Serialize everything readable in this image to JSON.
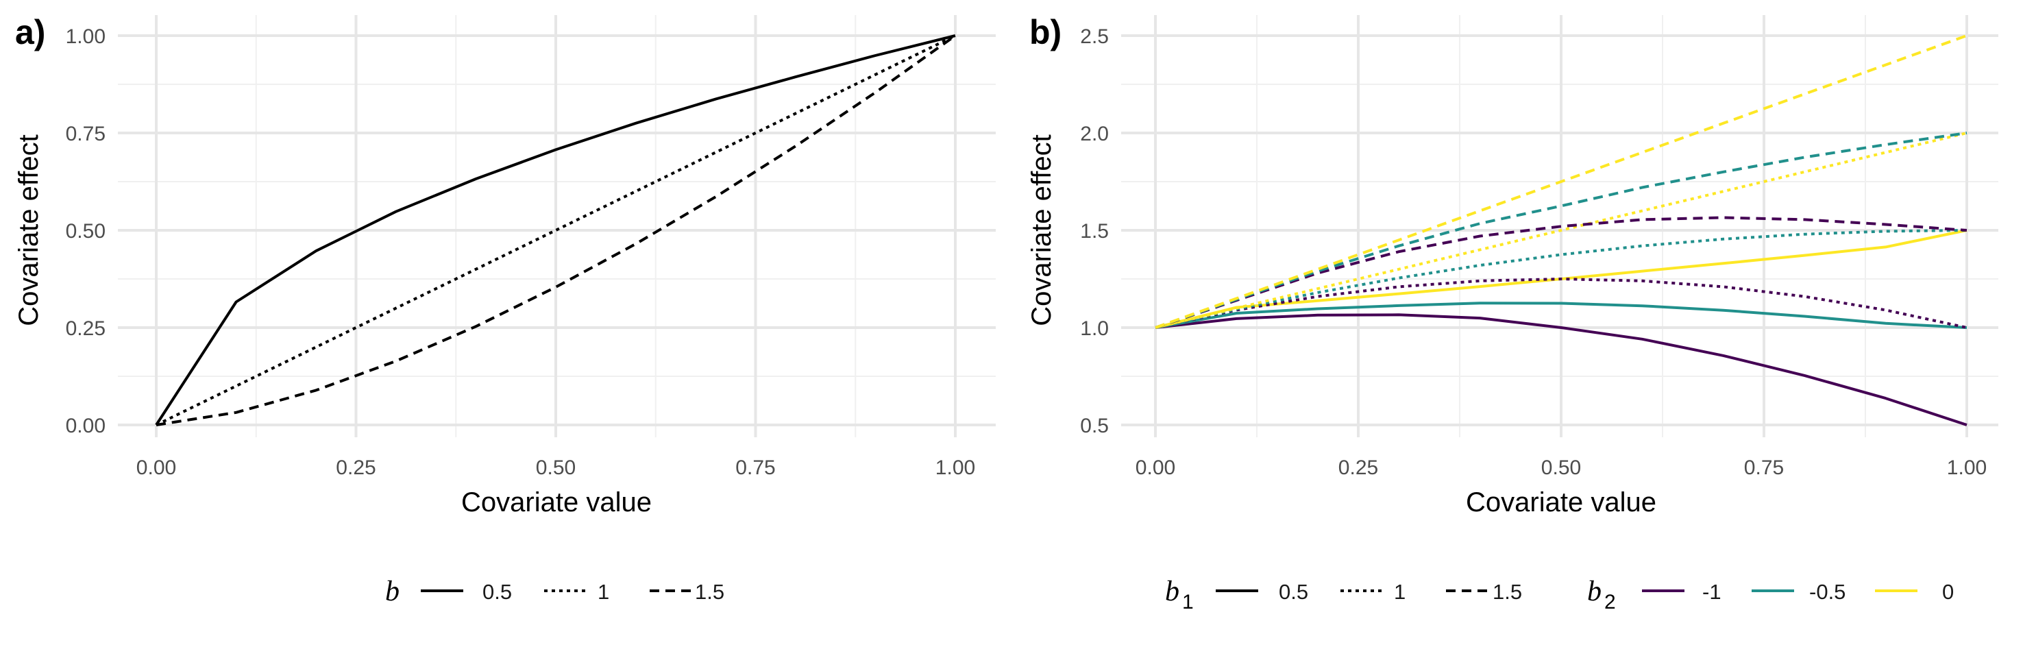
{
  "chart_data": [
    {
      "panel_tag": "a)",
      "type": "line",
      "xlabel": "Covariate value",
      "ylabel": "Covariate effect",
      "xlim": [
        0,
        1
      ],
      "ylim": [
        0,
        1
      ],
      "x_ticks": [
        "0.00",
        "0.25",
        "0.50",
        "0.75",
        "1.00"
      ],
      "y_ticks": [
        "0.00",
        "0.25",
        "0.50",
        "0.75",
        "1.00"
      ],
      "grid": true,
      "legend": {
        "title": "b",
        "placement": "bottom",
        "entries": [
          "0.5",
          "1",
          "1.5"
        ]
      },
      "series": [
        {
          "name": "0.5",
          "linetype": "solid",
          "color": "#000000",
          "x": [
            0,
            0.1,
            0.2,
            0.3,
            0.4,
            0.5,
            0.6,
            0.7,
            0.8,
            0.9,
            1.0
          ],
          "y": [
            0,
            0.316,
            0.447,
            0.548,
            0.632,
            0.707,
            0.775,
            0.837,
            0.894,
            0.949,
            1.0
          ]
        },
        {
          "name": "1",
          "linetype": "dotted",
          "color": "#000000",
          "x": [
            0,
            0.1,
            0.2,
            0.3,
            0.4,
            0.5,
            0.6,
            0.7,
            0.8,
            0.9,
            1.0
          ],
          "y": [
            0,
            0.1,
            0.2,
            0.3,
            0.4,
            0.5,
            0.6,
            0.7,
            0.8,
            0.9,
            1.0
          ]
        },
        {
          "name": "1.5",
          "linetype": "dashed",
          "color": "#000000",
          "x": [
            0,
            0.1,
            0.2,
            0.3,
            0.4,
            0.5,
            0.6,
            0.7,
            0.8,
            0.9,
            1.0
          ],
          "y": [
            0,
            0.032,
            0.089,
            0.164,
            0.253,
            0.354,
            0.465,
            0.586,
            0.716,
            0.854,
            1.0
          ]
        }
      ]
    },
    {
      "panel_tag": "b)",
      "type": "line",
      "xlabel": "Covariate value",
      "ylabel": "Covariate effect",
      "xlim": [
        0,
        1
      ],
      "ylim": [
        0.5,
        2.5
      ],
      "x_ticks": [
        "0.00",
        "0.25",
        "0.50",
        "0.75",
        "1.00"
      ],
      "y_ticks": [
        "0.5",
        "1.0",
        "1.5",
        "2.0",
        "2.5"
      ],
      "grid": true,
      "legend": {
        "placement": "bottom",
        "linetype_title": "b",
        "linetype_subscript": "1",
        "linetype_entries": [
          "0.5",
          "1",
          "1.5"
        ],
        "color_title": "b",
        "color_subscript": "2",
        "color_entries": [
          {
            "label": "-1",
            "color": "#440154"
          },
          {
            "label": "-0.5",
            "color": "#21908C"
          },
          {
            "label": "0",
            "color": "#FDE725"
          }
        ]
      },
      "series": [
        {
          "b1": "0.5",
          "b2": "-1",
          "linetype": "solid",
          "color": "#440154",
          "x": [
            0,
            0.1,
            0.2,
            0.3,
            0.4,
            0.5,
            0.6,
            0.7,
            0.8,
            0.9,
            1.0
          ],
          "y": [
            1.0,
            1.046,
            1.064,
            1.066,
            1.049,
            1.0,
            0.941,
            0.856,
            0.754,
            0.637,
            0.5
          ]
        },
        {
          "b1": "0.5",
          "b2": "-0.5",
          "linetype": "solid",
          "color": "#21908C",
          "x": [
            0,
            0.1,
            0.2,
            0.3,
            0.4,
            0.5,
            0.6,
            0.7,
            0.8,
            0.9,
            1.0
          ],
          "y": [
            1.0,
            1.074,
            1.097,
            1.113,
            1.126,
            1.125,
            1.112,
            1.089,
            1.058,
            1.022,
            1.0
          ]
        },
        {
          "b1": "0.5",
          "b2": "0",
          "linetype": "solid",
          "color": "#FDE725",
          "x": [
            0,
            0.1,
            0.2,
            0.3,
            0.4,
            0.5,
            0.6,
            0.7,
            0.8,
            0.9,
            1.0
          ],
          "y": [
            1.0,
            1.104,
            1.138,
            1.174,
            1.211,
            1.25,
            1.29,
            1.33,
            1.371,
            1.414,
            1.5
          ]
        },
        {
          "b1": "1",
          "b2": "-1",
          "linetype": "dotted",
          "color": "#440154",
          "x": [
            0,
            0.1,
            0.2,
            0.3,
            0.4,
            0.5,
            0.6,
            0.7,
            0.8,
            0.9,
            1.0
          ],
          "y": [
            1.0,
            1.09,
            1.16,
            1.21,
            1.24,
            1.25,
            1.24,
            1.21,
            1.16,
            1.09,
            1.0
          ]
        },
        {
          "b1": "1",
          "b2": "-0.5",
          "linetype": "dotted",
          "color": "#21908C",
          "x": [
            0,
            0.1,
            0.2,
            0.3,
            0.4,
            0.5,
            0.6,
            0.7,
            0.8,
            0.9,
            1.0
          ],
          "y": [
            1.0,
            1.095,
            1.18,
            1.255,
            1.32,
            1.375,
            1.42,
            1.455,
            1.48,
            1.495,
            1.5
          ]
        },
        {
          "b1": "1",
          "b2": "0",
          "linetype": "dotted",
          "color": "#FDE725",
          "x": [
            0,
            0.1,
            0.2,
            0.3,
            0.4,
            0.5,
            0.6,
            0.7,
            0.8,
            0.9,
            1.0
          ],
          "y": [
            1.0,
            1.1,
            1.2,
            1.3,
            1.4,
            1.5,
            1.6,
            1.7,
            1.8,
            1.9,
            2.0
          ]
        },
        {
          "b1": "1.5",
          "b2": "-1",
          "linetype": "dashed",
          "color": "#440154",
          "x": [
            0,
            0.1,
            0.2,
            0.3,
            0.4,
            0.5,
            0.6,
            0.7,
            0.8,
            0.9,
            1.0
          ],
          "y": [
            1.0,
            1.14,
            1.28,
            1.39,
            1.47,
            1.52,
            1.555,
            1.565,
            1.555,
            1.53,
            1.5
          ]
        },
        {
          "b1": "1.5",
          "b2": "-0.5",
          "linetype": "dashed",
          "color": "#21908C",
          "x": [
            0,
            0.1,
            0.2,
            0.3,
            0.4,
            0.5,
            0.6,
            0.7,
            0.8,
            0.9,
            1.0
          ],
          "y": [
            1.0,
            1.145,
            1.29,
            1.42,
            1.535,
            1.625,
            1.72,
            1.8,
            1.875,
            1.94,
            2.0
          ]
        },
        {
          "b1": "1.5",
          "b2": "0",
          "linetype": "dashed",
          "color": "#FDE725",
          "x": [
            0,
            0.1,
            0.2,
            0.3,
            0.4,
            0.5,
            0.6,
            0.7,
            0.8,
            0.9,
            1.0
          ],
          "y": [
            1.0,
            1.15,
            1.3,
            1.45,
            1.6,
            1.75,
            1.9,
            2.05,
            2.2,
            2.35,
            2.5
          ]
        }
      ]
    }
  ]
}
